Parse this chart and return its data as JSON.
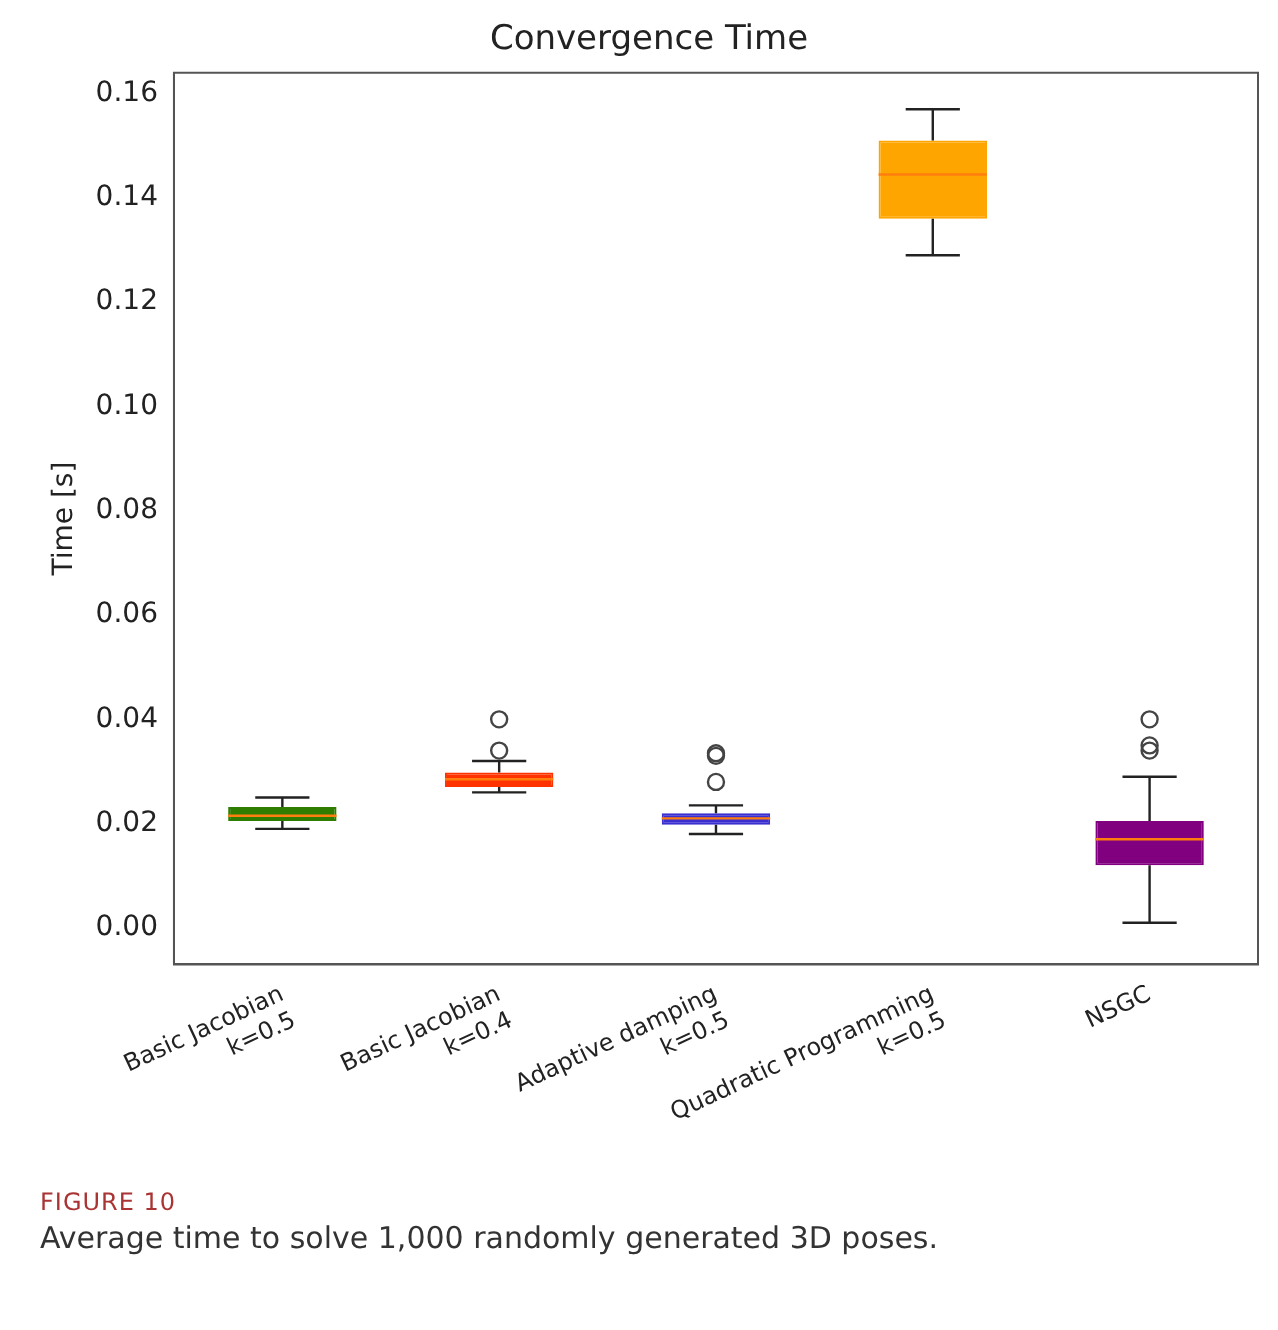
{
  "chart_data": {
    "type": "box",
    "title": "Convergence Time",
    "ylabel": "Time [s]",
    "categories": [
      "Basic Jacobian\nk=0.5",
      "Basic Jacobian\nk=0.4",
      "Adaptive damping\nk=0.5",
      "Quadratic Programming\nk=0.5",
      "NSGC"
    ],
    "colors": [
      "#2e7d00",
      "#ff3300",
      "#3b2fd0",
      "#ffa500",
      "#800080"
    ],
    "boxes": [
      {
        "low": 0.019,
        "q1": 0.0205,
        "median": 0.0215,
        "q3": 0.0232,
        "high": 0.025
      },
      {
        "low": 0.026,
        "q1": 0.027,
        "median": 0.0285,
        "q3": 0.0298,
        "high": 0.032,
        "outliers": [
          0.034,
          0.04
        ]
      },
      {
        "low": 0.018,
        "q1": 0.0198,
        "median": 0.021,
        "q3": 0.022,
        "high": 0.0235,
        "outliers": [
          0.028,
          0.033,
          0.0335
        ]
      },
      {
        "low": 0.129,
        "q1": 0.136,
        "median": 0.1445,
        "q3": 0.151,
        "high": 0.157
      },
      {
        "low": 0.001,
        "q1": 0.012,
        "median": 0.017,
        "q3": 0.0205,
        "high": 0.029,
        "outliers": [
          0.034,
          0.035,
          0.04
        ]
      }
    ],
    "ylim": [
      -0.007,
      0.164
    ],
    "yticks": [
      {
        "value": 0,
        "label": "0.00"
      },
      {
        "value": 0.02,
        "label": "0.02"
      },
      {
        "value": 0.04,
        "label": "0.04"
      },
      {
        "value": 0.06,
        "label": "0.06"
      },
      {
        "value": 0.08,
        "label": "0.08"
      },
      {
        "value": 0.1,
        "label": "0.10"
      },
      {
        "value": 0.12,
        "label": "0.12"
      },
      {
        "value": 0.14,
        "label": "0.14"
      },
      {
        "value": 0.16,
        "label": "0.16"
      }
    ],
    "grid": false,
    "legend": false,
    "annotations": [
      "FIGURE 10",
      "Average time to solve 1,000 randomly generated 3D poses."
    ]
  }
}
